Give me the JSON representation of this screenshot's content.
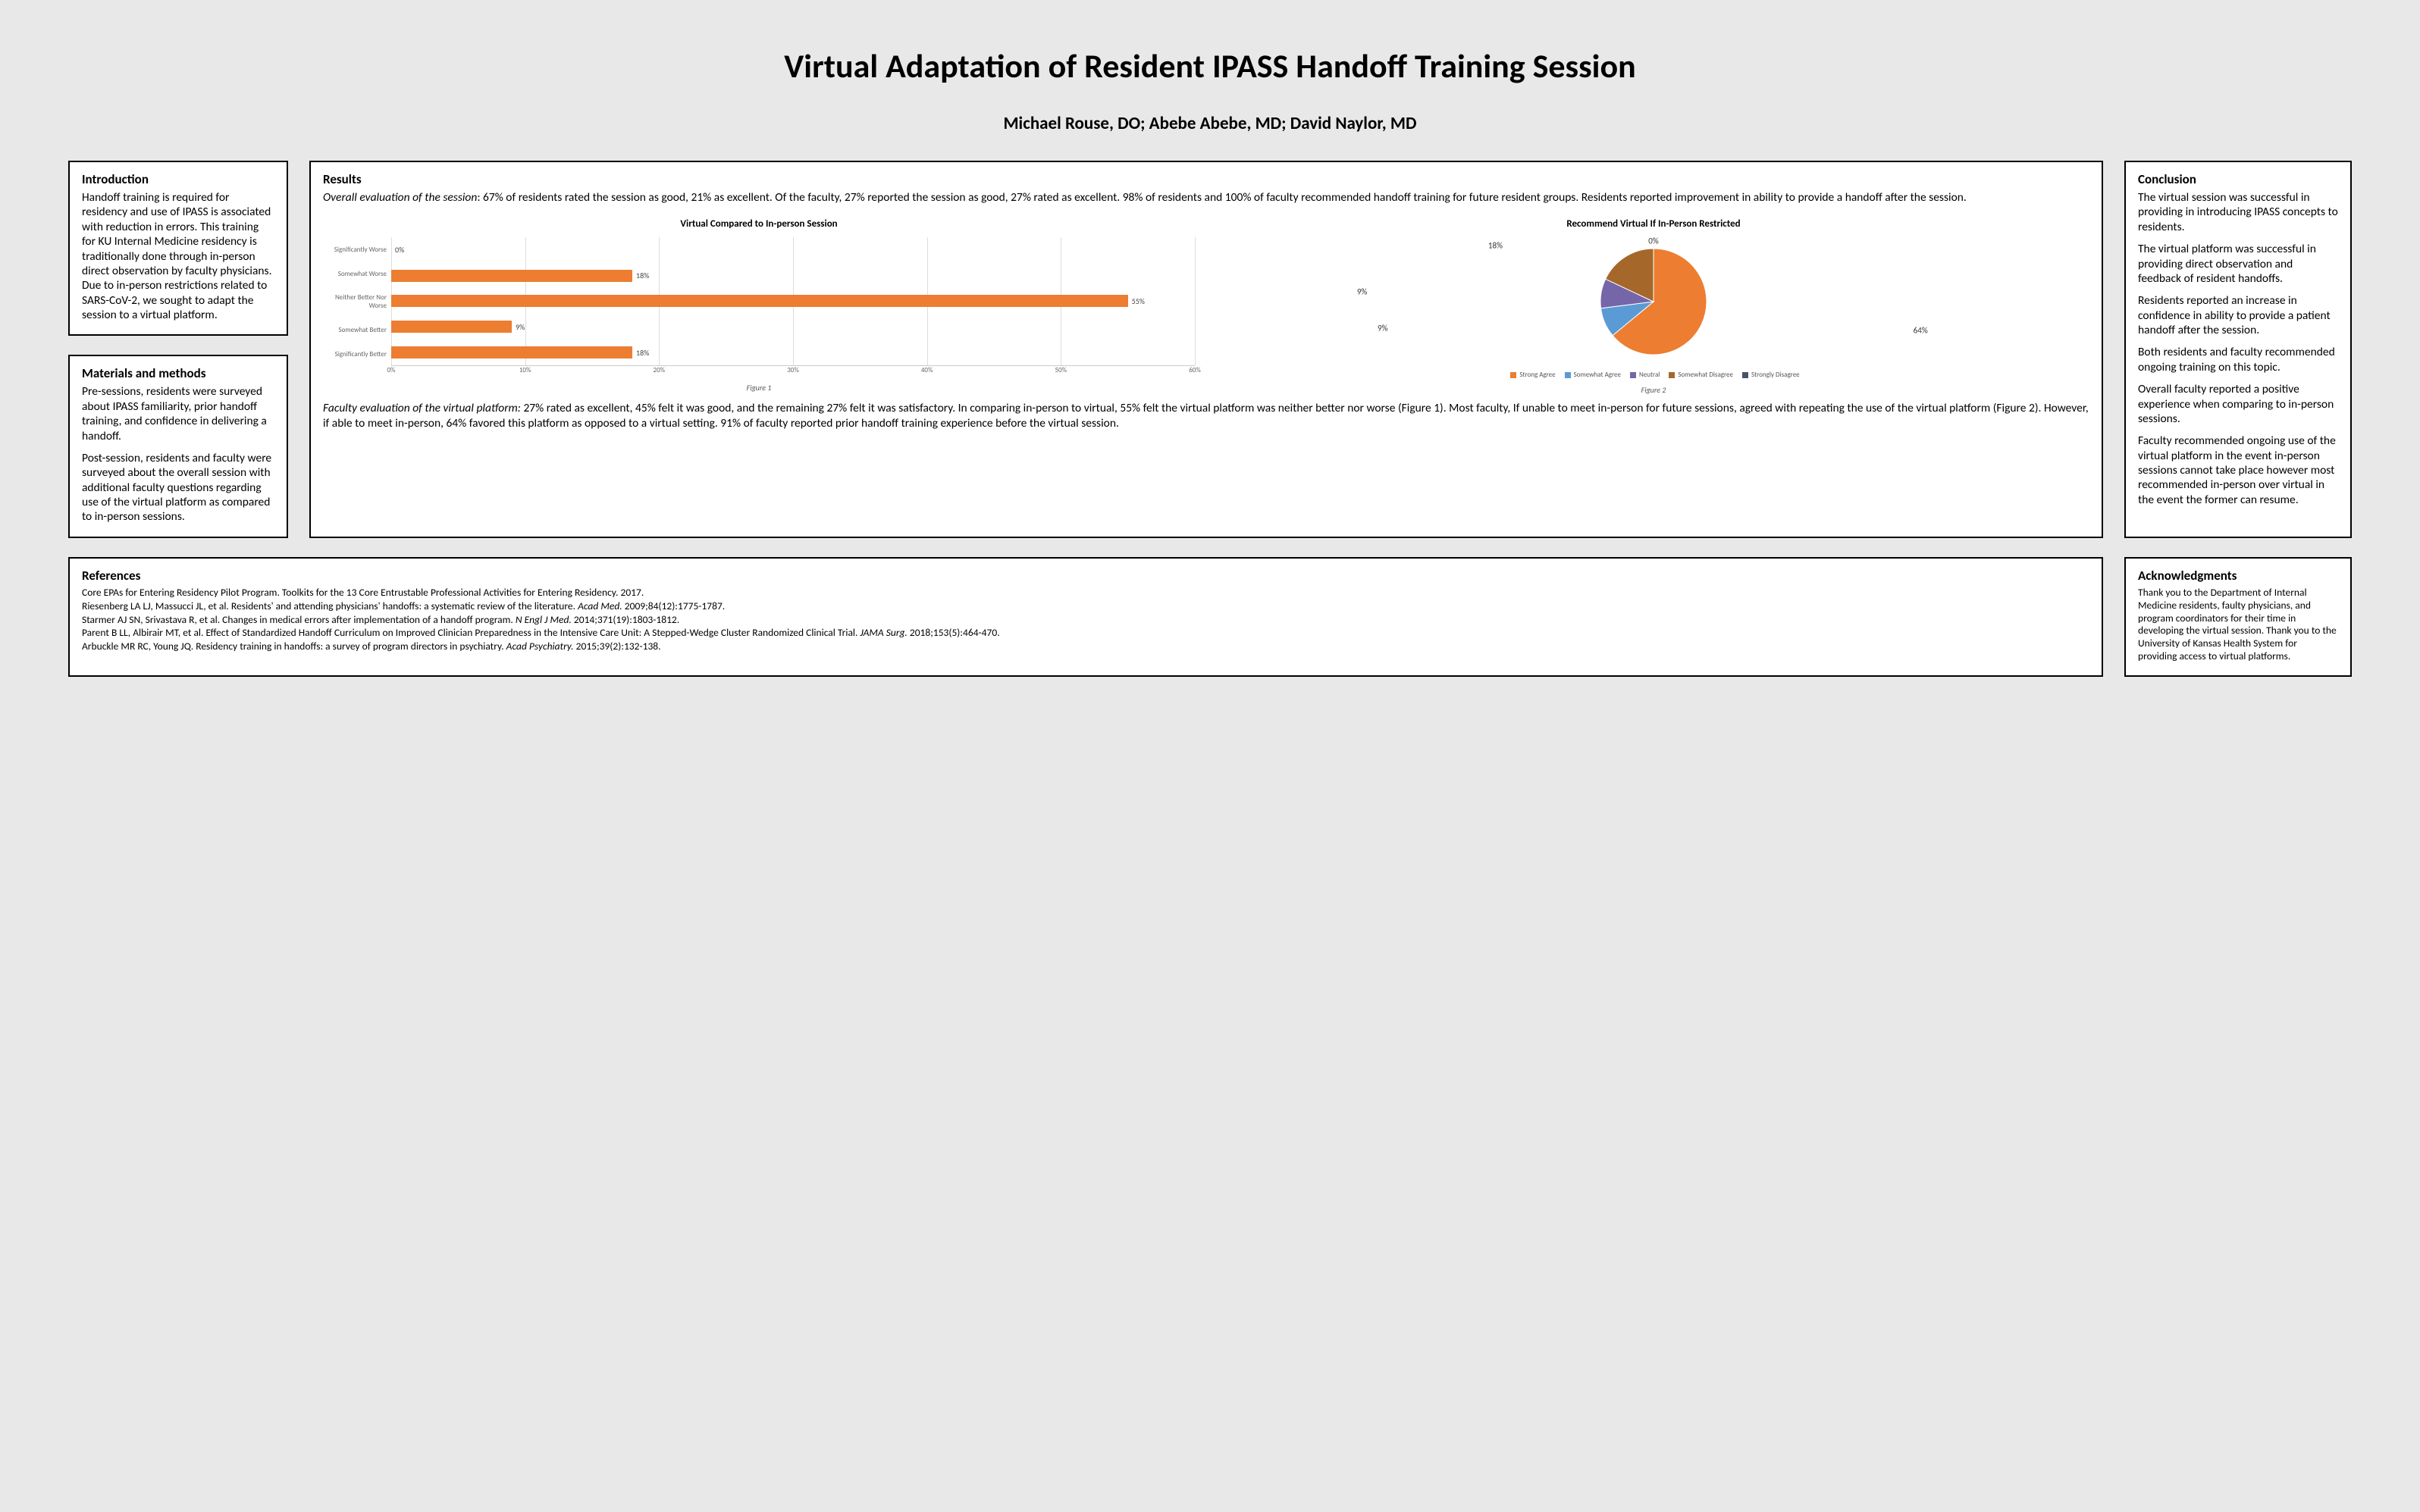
{
  "title": "Virtual Adaptation of Resident IPASS Handoff Training Session",
  "authors": "Michael Rouse, DO; Abebe Abebe, MD; David Naylor, MD",
  "intro": {
    "heading": "Introduction",
    "text": "Handoff training is required for residency and use of IPASS is associated with reduction in errors. This training for KU Internal Medicine residency is traditionally done through in-person direct observation by faculty physicians.  Due to in-person restrictions related to SARS-CoV-2,  we sought to adapt the session to a virtual platform."
  },
  "methods": {
    "heading": "Materials and methods",
    "p1": "Pre-sessions, residents were surveyed about IPASS familiarity, prior handoff training, and confidence in delivering a handoff.",
    "p2": "Post-session, residents and faculty were surveyed about the overall session with additional faculty questions regarding use of the virtual platform as compared to in-person sessions."
  },
  "results": {
    "heading": "Results",
    "overall_label": "Overall evaluation of the session",
    "overall_text": ": 67% of residents rated the session as good, 21% as excellent. Of the faculty, 27% reported the session as good, 27% rated as excellent.  98% of residents and 100% of faculty recommended handoff training for future resident groups.  Residents reported improvement in ability to provide a handoff after the session.",
    "faculty_label": "Faculty evaluation of the virtual platform:",
    "faculty_text": " 27% rated as excellent, 45% felt it was good, and the remaining 27% felt it was satisfactory. In comparing in-person to virtual, 55% felt the virtual platform was neither better nor worse (Figure 1).  Most faculty, If unable to meet in-person for future sessions, agreed with repeating the use of the virtual platform (Figure 2).  However, if able to meet in-person, 64% favored this platform as opposed to a virtual setting.  91% of faculty reported prior handoff training experience before the virtual session.",
    "bar_chart": {
      "type": "bar-horizontal",
      "title": "Virtual Compared to In-person Session",
      "categories": [
        "Significantly Worse",
        "Somewhat Worse",
        "Neither Better Nor Worse",
        "Somewhat Better",
        "Significantly Better"
      ],
      "values": [
        0,
        18,
        55,
        9,
        18
      ],
      "value_labels": [
        "0%",
        "18%",
        "55%",
        "9%",
        "18%"
      ],
      "bar_color": "#ed7d31",
      "xlim": [
        0,
        60
      ],
      "xtick_step": 10,
      "xticks": [
        "0%",
        "10%",
        "20%",
        "30%",
        "40%",
        "50%",
        "60%"
      ],
      "grid_color": "#dddddd",
      "label_fontsize": 9,
      "caption": "Figure 1"
    },
    "pie_chart": {
      "type": "pie",
      "title": "Recommend Virtual If In-Person Restricted",
      "slices": [
        {
          "label": "Strong Agree",
          "value": 64,
          "color": "#ed7d31",
          "pct_label": "64%"
        },
        {
          "label": "Somewhat Agree",
          "value": 9,
          "color": "#5b9bd5",
          "pct_label": "9%"
        },
        {
          "label": "Neutral",
          "value": 9,
          "color": "#7466a8",
          "pct_label": "9%"
        },
        {
          "label": "Somewhat Disagree",
          "value": 18,
          "color": "#a5682a",
          "pct_label": "18%"
        },
        {
          "label": "Strongly Disagree",
          "value": 0,
          "color": "#44546a",
          "pct_label": "0%"
        }
      ],
      "caption": "Figure 2",
      "legend_items": [
        "Strong Agree",
        "Somewhat Agree",
        "Neutral",
        "Somewhat Disagree",
        "Strongly Disagree"
      ],
      "legend_colors": [
        "#ed7d31",
        "#5b9bd5",
        "#7466a8",
        "#a5682a",
        "#44546a"
      ]
    }
  },
  "conclusion": {
    "heading": "Conclusion",
    "paras": [
      "The virtual session was successful in providing in introducing IPASS concepts to residents.",
      "The virtual platform was  successful in providing direct observation and feedback of resident handoffs.",
      "Residents reported an increase in confidence in ability to provide a patient handoff after the session.",
      "Both residents and faculty recommended ongoing training on this topic.",
      "Overall faculty reported a positive experience when comparing to in-person sessions.",
      "Faculty recommended ongoing use of the virtual platform in the event in-person sessions cannot take place however most recommended in-person over virtual in the event the former can resume."
    ]
  },
  "references": {
    "heading": "References",
    "lines": [
      {
        "pre": "Core EPAs for Entering Residency Pilot Program. Toolkits for the 13 Core Entrustable Professional Activities for Entering Residency. 2017.",
        "ital": "",
        "post": ""
      },
      {
        "pre": "Riesenberg LA LJ, Massucci JL, et al. Residents' and attending physicians' handoffs: a systematic review of the literature. ",
        "ital": "Acad Med.",
        "post": " 2009;84(12):1775-1787."
      },
      {
        "pre": "Starmer AJ SN, Srivastava R, et al. Changes in medical errors after implementation of a handoff program. ",
        "ital": "N Engl J Med.",
        "post": " 2014;371(19):1803-1812."
      },
      {
        "pre": "Parent B LL, Albirair MT, et al. Effect of Standardized Handoff Curriculum on Improved Clinician Preparedness in the Intensive Care Unit: A Stepped-Wedge Cluster Randomized Clinical Trial. ",
        "ital": "JAMA Surg.",
        "post": " 2018;153(5):464-470."
      },
      {
        "pre": "Arbuckle MR RC, Young JQ. Residency training in handoffs: a survey of program directors in psychiatry. ",
        "ital": "Acad Psychiatry.",
        "post": " 2015;39(2):132-138."
      }
    ]
  },
  "ack": {
    "heading": "Acknowledgments",
    "text": "Thank you to the Department of Internal Medicine residents, faulty physicians, and program coordinators for their time in developing the virtual session.  Thank you to the University of Kansas Health System for providing access to virtual platforms."
  }
}
